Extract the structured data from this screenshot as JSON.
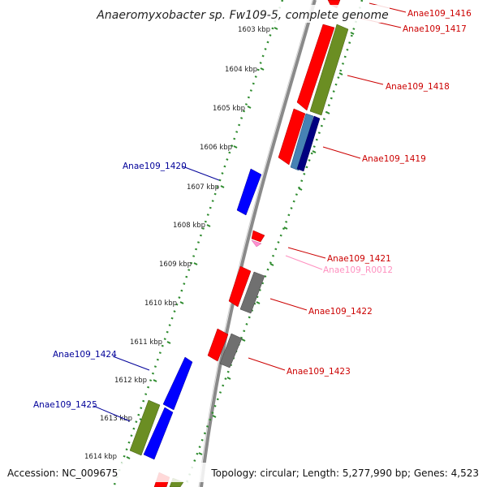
{
  "title": "Anaeromyxobacter sp. Fw109-5, complete genome",
  "footer": {
    "accession": "Accession: NC_009675",
    "summary": "Topology: circular; Length: 5,277,990 bp; Genes: 4,523"
  },
  "colors": {
    "backbone": "#8a8a8a",
    "tick": "#2e8b2e",
    "gene_red": "#ff0000",
    "gene_blue": "#0000ff",
    "gene_green": "#6b8e23",
    "gene_gray": "#707070",
    "gene_steelblue": "#4682b4",
    "gene_navy": "#000080",
    "gene_pink": "#ff8fd0",
    "label_red": "#cc0000",
    "label_blue": "#000099",
    "label_pink": "#ff8fbf"
  },
  "ticks": [
    "1603 kbp",
    "1604 kbp",
    "1605 kbp",
    "1606 kbp",
    "1607 kbp",
    "1608 kbp",
    "1609 kbp",
    "1610 kbp",
    "1611 kbp",
    "1612 kbp",
    "1613 kbp",
    "1614 kbp"
  ],
  "labels": [
    {
      "text": "Anae109_1416",
      "color": "red"
    },
    {
      "text": "Anae109_1417",
      "color": "red"
    },
    {
      "text": "Anae109_1418",
      "color": "red"
    },
    {
      "text": "Anae109_1419",
      "color": "red"
    },
    {
      "text": "Anae109_1420",
      "color": "blue"
    },
    {
      "text": "Anae109_1421",
      "color": "red"
    },
    {
      "text": "Anae109_R0012",
      "color": "pink"
    },
    {
      "text": "Anae109_1422",
      "color": "red"
    },
    {
      "text": "Anae109_1423",
      "color": "red"
    },
    {
      "text": "Anae109_1424",
      "color": "blue"
    },
    {
      "text": "Anae109_1425",
      "color": "blue"
    }
  ]
}
